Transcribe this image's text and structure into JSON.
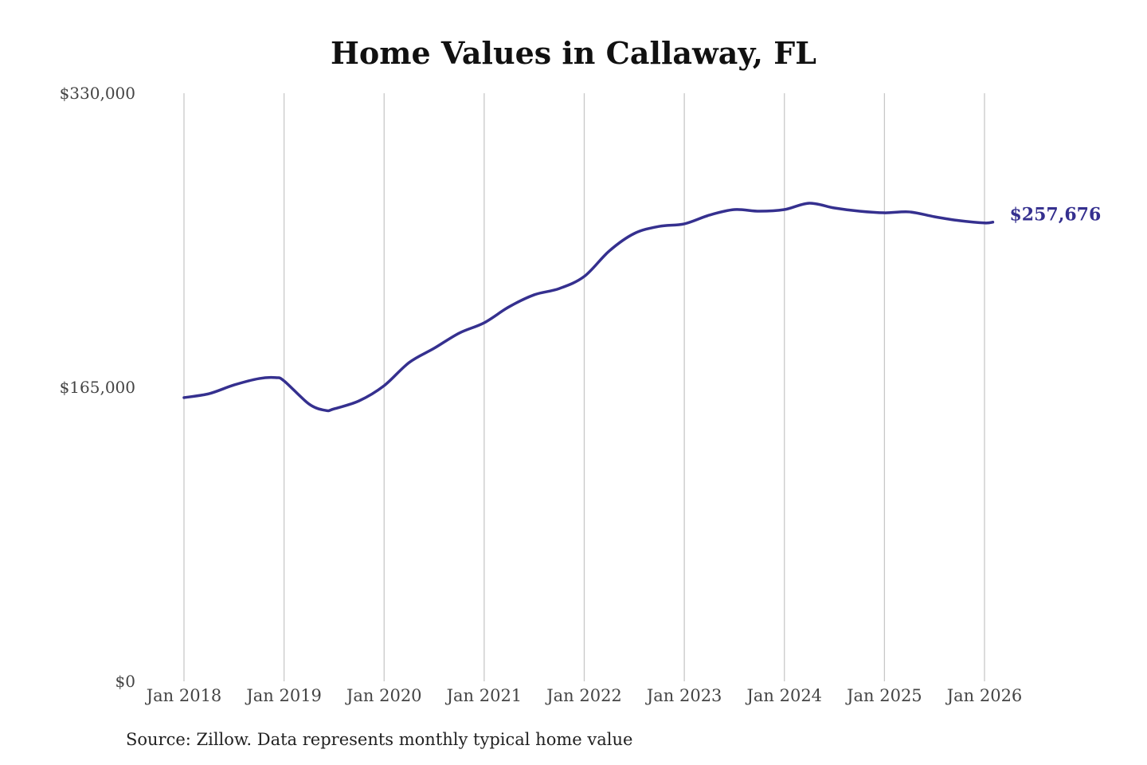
{
  "chart_data": {
    "type": "line",
    "title": "Home Values in Callaway, FL",
    "xlabel": "",
    "ylabel": "",
    "ylim": [
      0,
      330000
    ],
    "y_ticks": [
      "$0",
      "$165,000",
      "$330,000"
    ],
    "y_tick_values": [
      0,
      165000,
      330000
    ],
    "x_ticks": [
      "Jan 2018",
      "Jan 2019",
      "Jan 2020",
      "Jan 2021",
      "Jan 2022",
      "Jan 2023",
      "Jan 2024",
      "Jan 2025",
      "Jan 2026"
    ],
    "grid": "vertical",
    "line_color": "#35308f",
    "end_label": "$257,676",
    "series": [
      {
        "x": [
          "2018-01",
          "2018-04",
          "2018-07",
          "2018-10",
          "2018-12",
          "2019-01",
          "2019-04",
          "2019-06",
          "2019-07",
          "2019-10",
          "2020-01",
          "2020-04",
          "2020-07",
          "2020-10",
          "2021-01",
          "2021-04",
          "2021-07",
          "2021-10",
          "2022-01",
          "2022-04",
          "2022-07",
          "2022-10",
          "2023-01",
          "2023-04",
          "2023-07",
          "2023-10",
          "2024-01",
          "2024-04",
          "2024-07",
          "2024-10",
          "2025-01",
          "2025-04",
          "2025-07",
          "2025-10",
          "2026-01",
          "2026-02"
        ],
        "values": [
          159200,
          161400,
          166300,
          169900,
          170400,
          168600,
          155600,
          152000,
          152900,
          157400,
          165900,
          178900,
          186900,
          195400,
          201200,
          210200,
          216900,
          220400,
          227200,
          241500,
          251300,
          255300,
          256700,
          261600,
          264700,
          263800,
          264700,
          268300,
          265600,
          263800,
          262900,
          263400,
          260700,
          258500,
          257200,
          257676
        ]
      }
    ]
  },
  "source": "Source: Zillow. Data represents monthly typical home value"
}
